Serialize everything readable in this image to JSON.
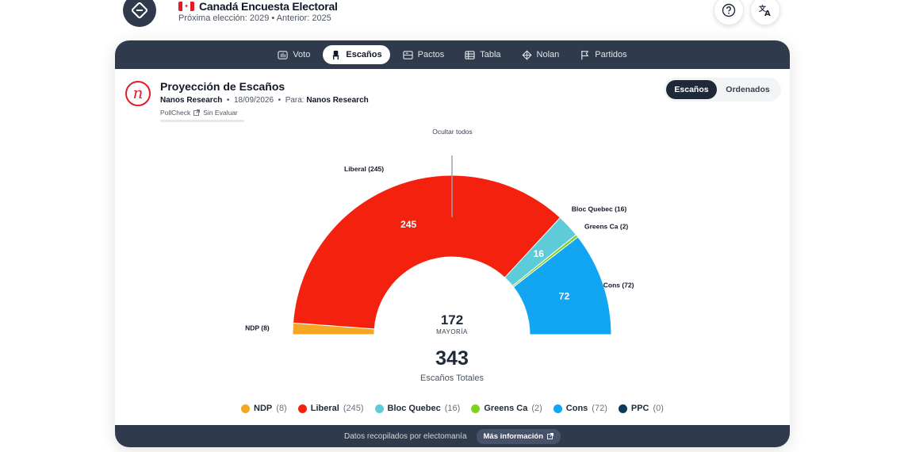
{
  "app": {
    "title": "Canadá Encuesta Electoral",
    "subtitle": "Próxima elección: 2029 • Anterior: 2025"
  },
  "nav": {
    "tabs": [
      {
        "label": "Voto",
        "icon": "bar-chart-icon"
      },
      {
        "label": "Escaños",
        "icon": "chair-icon",
        "active": true
      },
      {
        "label": "Pactos",
        "icon": "handshake-icon"
      },
      {
        "label": "Tabla",
        "icon": "table-icon"
      },
      {
        "label": "Nolan",
        "icon": "grid-icon"
      },
      {
        "label": "Partidos",
        "icon": "flag-icon"
      }
    ]
  },
  "projection": {
    "title": "Proyección de Escaños",
    "pollster": "Nanos Research",
    "date": "18/09/2026",
    "for_label": "Para:",
    "for_value": "Nanos Research",
    "pollcheck": "PollCheck",
    "pollcheck_status": "Sin Evaluar"
  },
  "toggle": {
    "active": "Escaños",
    "inactive": "Ordenados"
  },
  "hide_all": "Ocultar todos",
  "chart_data": {
    "type": "pie",
    "variant": "parliament-semicircle",
    "total_seats": 343,
    "total_label": "Escaños Totales",
    "majority": 172,
    "majority_label": "MAYORÍA",
    "series": [
      {
        "name": "NDP",
        "value": 8,
        "color": "#f5a623",
        "label": "NDP (8)"
      },
      {
        "name": "Liberal",
        "value": 245,
        "color": "#f5210f",
        "label": "Liberal (245)"
      },
      {
        "name": "Bloc Quebec",
        "value": 16,
        "color": "#5ecbd9",
        "label": "Bloc Quebec (16)"
      },
      {
        "name": "Greens Ca",
        "value": 2,
        "color": "#7ed321",
        "label": "Greens Ca (2)"
      },
      {
        "name": "Cons",
        "value": 72,
        "color": "#12a6f2",
        "label": "Cons (72)"
      },
      {
        "name": "PPC",
        "value": 0,
        "color": "#0b3a5b",
        "label": "PPC (0)"
      }
    ]
  },
  "footer": {
    "source_text": "Datos recopilados por electomanía",
    "more_button": "Más información"
  },
  "colors": {
    "navbar": "#2f3b4c",
    "accent_red": "#e11d2a"
  }
}
